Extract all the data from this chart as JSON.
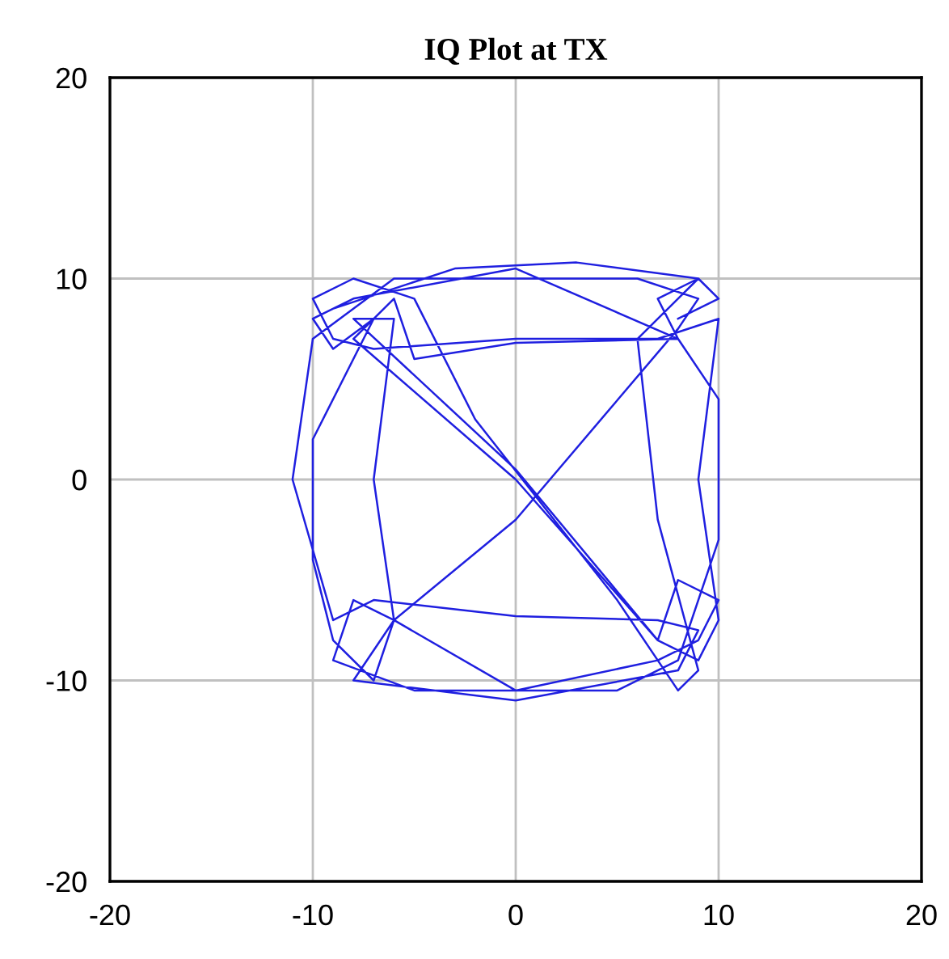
{
  "chart_data": {
    "type": "line",
    "title": "IQ Plot at TX",
    "x": [
      8,
      10,
      9,
      7,
      8,
      0,
      -8,
      -10,
      -9,
      -7,
      -10,
      -10,
      -9,
      -7,
      -6,
      0,
      7,
      9,
      10,
      8,
      7,
      0,
      -8,
      -6,
      -5,
      0,
      8,
      10,
      10,
      8,
      5,
      -5,
      -9,
      -8,
      -6,
      0,
      8,
      9,
      6,
      -6,
      -10,
      -11,
      -9,
      -7,
      0,
      7,
      9,
      8,
      0,
      -8,
      -6,
      -7,
      -6,
      -8,
      0,
      7,
      9,
      10,
      9,
      10,
      7,
      0,
      -7,
      -9,
      -10,
      -8,
      -5,
      -2,
      5,
      7,
      8,
      9,
      7,
      6,
      8,
      9,
      3,
      -3,
      -9
    ],
    "series": [
      {
        "color": "#1f1fe0",
        "values": [
          8,
          9,
          10,
          9,
          7,
          10.5,
          9,
          8,
          6.5,
          8,
          2,
          -4,
          -8,
          -10,
          -7,
          -10.5,
          -9,
          -8,
          -6,
          -5,
          -8,
          0,
          7,
          9,
          6,
          6.8,
          7,
          4,
          -3,
          -9,
          -10.5,
          -10.5,
          -9,
          -6,
          -7,
          -2,
          7.5,
          9,
          10,
          10,
          7,
          0,
          -7,
          -6,
          -6.8,
          -7,
          -7.5,
          -9.5,
          -11,
          -10,
          -7,
          0,
          8,
          8,
          0.5,
          -8,
          -9,
          -7,
          0,
          8,
          7,
          7,
          6.5,
          7,
          9,
          10,
          9,
          3,
          -6,
          -9,
          -10.5,
          -9.5,
          -2,
          7,
          9,
          10,
          10.8,
          10.5,
          8.5
        ]
      }
    ],
    "xlim": [
      -20,
      20
    ],
    "ylim": [
      -20,
      20
    ],
    "xticks": [
      -20,
      -10,
      0,
      10,
      20
    ],
    "yticks": [
      -20,
      -10,
      0,
      10,
      20
    ],
    "grid": true,
    "marker": "none",
    "line_style": "solid"
  }
}
